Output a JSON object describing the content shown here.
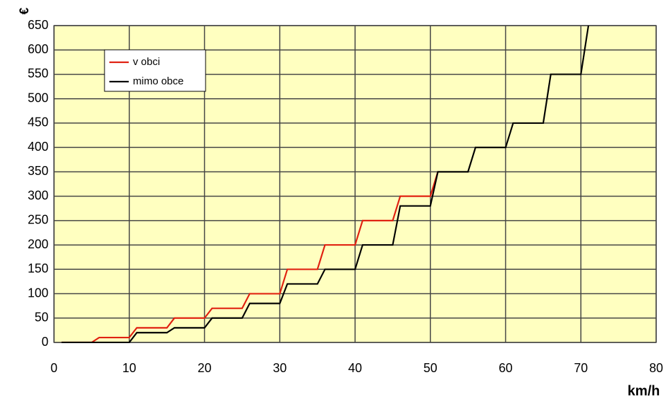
{
  "chart_data": {
    "type": "line",
    "x_label": "km/h",
    "y_label": "€",
    "x": [
      1,
      5,
      6,
      10,
      11,
      15,
      16,
      20,
      21,
      25,
      26,
      30,
      31,
      35,
      36,
      40,
      41,
      45,
      46,
      50,
      51,
      55,
      56,
      60,
      61,
      65,
      66,
      70,
      71
    ],
    "series": [
      {
        "name": "v obci",
        "color": "#e02010",
        "values": [
          0,
          0,
          10,
          10,
          30,
          30,
          50,
          50,
          70,
          70,
          100,
          100,
          150,
          150,
          200,
          200,
          250,
          250,
          300,
          300,
          350,
          null,
          null,
          null,
          null,
          null,
          null,
          null,
          null
        ]
      },
      {
        "name": "mimo obce",
        "color": "#000000",
        "values": [
          0,
          0,
          0,
          0,
          20,
          20,
          30,
          30,
          50,
          50,
          80,
          80,
          120,
          120,
          150,
          150,
          200,
          200,
          280,
          280,
          350,
          350,
          400,
          400,
          450,
          450,
          550,
          550,
          650
        ]
      }
    ],
    "xlim": [
      0,
      80
    ],
    "xticks": [
      0,
      10,
      20,
      30,
      40,
      50,
      60,
      70,
      80
    ],
    "ylim": [
      0,
      650
    ],
    "yticks": [
      0,
      50,
      100,
      150,
      200,
      250,
      300,
      350,
      400,
      450,
      500,
      550,
      600,
      650
    ],
    "grid": true,
    "background": "#ffffc0"
  }
}
